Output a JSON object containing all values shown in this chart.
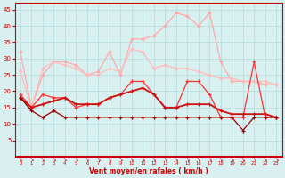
{
  "xlabel": "Vent moyen/en rafales ( km/h )",
  "x": [
    0,
    1,
    2,
    3,
    4,
    5,
    6,
    7,
    8,
    9,
    10,
    11,
    12,
    13,
    14,
    15,
    16,
    17,
    18,
    19,
    20,
    21,
    22,
    23
  ],
  "line1": [
    32,
    15,
    25,
    29,
    29,
    28,
    25,
    26,
    32,
    25,
    36,
    36,
    37,
    40,
    44,
    43,
    40,
    44,
    29,
    23,
    23,
    23,
    22,
    22
  ],
  "line2": [
    26,
    15,
    27,
    29,
    28,
    27,
    25,
    25,
    27,
    26,
    33,
    32,
    27,
    28,
    27,
    27,
    26,
    25,
    24,
    24,
    23,
    23,
    23,
    22
  ],
  "line3": [
    19,
    15,
    19,
    18,
    18,
    15,
    16,
    16,
    18,
    19,
    23,
    23,
    19,
    15,
    15,
    23,
    23,
    19,
    12,
    12,
    12,
    29,
    12,
    12
  ],
  "line4": [
    18,
    15,
    16,
    17,
    18,
    16,
    16,
    16,
    18,
    19,
    20,
    21,
    19,
    15,
    15,
    16,
    16,
    16,
    14,
    13,
    13,
    13,
    13,
    12
  ],
  "line5": [
    18,
    14,
    12,
    14,
    12,
    12,
    12,
    12,
    12,
    12,
    12,
    12,
    12,
    12,
    12,
    12,
    12,
    12,
    12,
    12,
    8,
    12,
    12,
    12
  ],
  "color1": "#ffaaaa",
  "color2": "#ffbbbb",
  "color3": "#ff3333",
  "color4": "#cc1111",
  "color5": "#990000",
  "bg_color": "#d8f0f0",
  "grid_color": "#b8dede",
  "spine_color": "#cc0000",
  "label_color": "#cc0000",
  "ylim": [
    0,
    47
  ],
  "yticks": [
    5,
    10,
    15,
    20,
    25,
    30,
    35,
    40,
    45
  ],
  "xlim": [
    -0.5,
    23.5
  ]
}
